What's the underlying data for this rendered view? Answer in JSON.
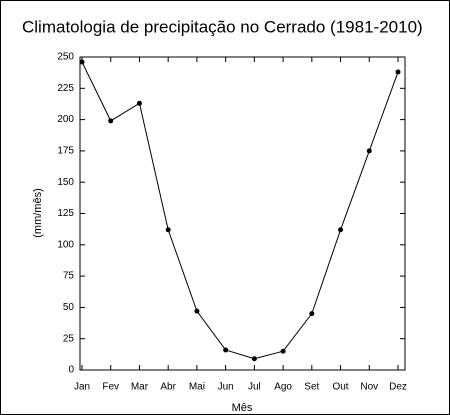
{
  "chart_data": {
    "type": "line",
    "title": "Climatologia de precipitação no Cerrado (1981-2010)",
    "x_label": "Mês",
    "y_label": "(mm/mês)",
    "categories": [
      "Jan",
      "Fev",
      "Mar",
      "Abr",
      "Mai",
      "Jun",
      "Jul",
      "Ago",
      "Set",
      "Out",
      "Nov",
      "Dez"
    ],
    "values": [
      246,
      199,
      213,
      112,
      47,
      16,
      9,
      15,
      45,
      112,
      175,
      238
    ],
    "color": "#000000",
    "ylim": [
      0,
      250
    ],
    "yticks": [
      0,
      25,
      50,
      75,
      100,
      125,
      150,
      175,
      200,
      225,
      250
    ]
  }
}
